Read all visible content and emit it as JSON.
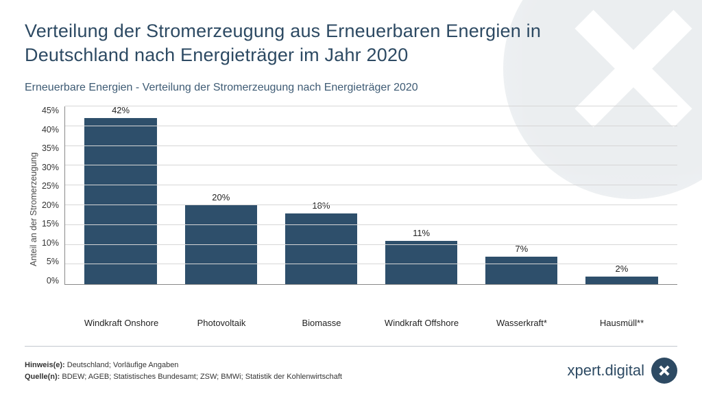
{
  "headline": "Verteilung der Stromerzeugung aus Erneuerbaren Energien in Deutschland nach Energieträger im Jahr 2020",
  "subhead": "Erneuerbare Energien - Verteilung der Stromerzeugung nach Energieträger 2020",
  "chart": {
    "type": "bar",
    "y_label": "Anteil an der Stromerzeugung",
    "ylim": [
      0,
      45
    ],
    "ytick_step": 5,
    "yticks": [
      "45%",
      "40%",
      "35%",
      "30%",
      "25%",
      "20%",
      "15%",
      "10%",
      "5%",
      "0%"
    ],
    "categories": [
      "Windkraft Onshore",
      "Photovoltaik",
      "Biomasse",
      "Windkraft Offshore",
      "Wasserkraft*",
      "Hausmüll**"
    ],
    "values": [
      42,
      20,
      18,
      11,
      7,
      2
    ],
    "value_labels": [
      "42%",
      "20%",
      "18%",
      "11%",
      "7%",
      "2%"
    ],
    "bar_color": "#2e4f6b",
    "grid_color": "#d6d6d6",
    "axis_color": "#888888",
    "background_color": "#ffffff",
    "label_fontsize": 13,
    "axis_fontsize": 12.5,
    "bar_width_pct": 72
  },
  "notes": {
    "hint_label": "Hinweis(e):",
    "hint_text": " Deutschland; Vorläufige Angaben",
    "source_label": "Quelle(n):",
    "source_text": " BDEW; AGEB; Statistisches Bundesamt; ZSW; BMWi; Statistik der Kohlenwirtschaft"
  },
  "brand": {
    "text": "xpert.digital"
  },
  "colors": {
    "headline": "#2d4a63",
    "subhead": "#3e5b74",
    "text": "#333333",
    "brand": "#2d4a63",
    "watermark": "#c7cfd6"
  }
}
